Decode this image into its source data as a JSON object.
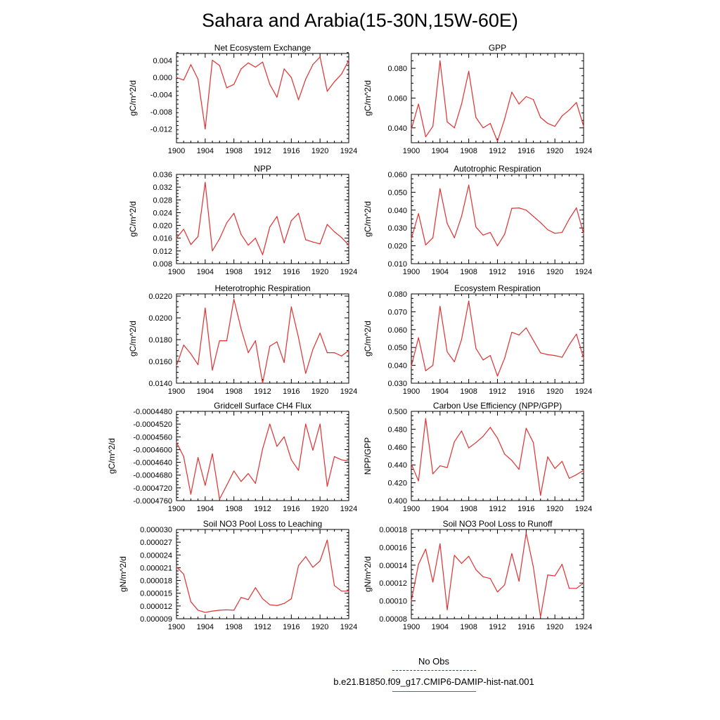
{
  "figure_title": "Sahara and Arabia(15-30N,15W-60E)",
  "legend": {
    "obs_label": "No Obs",
    "run_label": "b.e21.B1850.f09_g17.CMIP6-DAMIP-hist-nat.001",
    "obs_color": "#3333cc",
    "run_color": "#e03030"
  },
  "chart_data": [
    {
      "type": "line",
      "title": "Net Ecosystem Exchange",
      "ylabel": "gC/m^2/d",
      "x": [
        1900,
        1901,
        1902,
        1903,
        1904,
        1905,
        1906,
        1907,
        1908,
        1909,
        1910,
        1911,
        1912,
        1913,
        1914,
        1915,
        1916,
        1917,
        1918,
        1919,
        1920,
        1921,
        1922,
        1923,
        1924
      ],
      "xticks": [
        "1900",
        "1904",
        "1908",
        "1912",
        "1916",
        "1920",
        "1924"
      ],
      "xlim": [
        1900,
        1924
      ],
      "ylim": [
        -0.0152,
        0.0056
      ],
      "yticks": [
        "0.004",
        "0.000",
        "-0.004",
        "-0.008",
        "-0.012"
      ],
      "ytick_values": [
        0.004,
        0.0,
        -0.004,
        -0.008,
        -0.012
      ],
      "series": [
        {
          "color": "#e03030",
          "values": [
            0.0,
            -0.0006,
            0.003,
            -0.0004,
            -0.012,
            0.004,
            0.0028,
            -0.0024,
            -0.0016,
            0.002,
            0.0034,
            0.0024,
            0.0036,
            -0.0016,
            -0.0046,
            0.002,
            0.0,
            -0.0052,
            -0.0004,
            0.003,
            0.0048,
            -0.0032,
            -0.001,
            0.0008,
            0.004
          ]
        }
      ]
    },
    {
      "type": "line",
      "title": "GPP",
      "ylabel": "gC/m^2/d",
      "x": [
        1900,
        1901,
        1902,
        1903,
        1904,
        1905,
        1906,
        1907,
        1908,
        1909,
        1910,
        1911,
        1912,
        1913,
        1914,
        1915,
        1916,
        1917,
        1918,
        1919,
        1920,
        1921,
        1922,
        1923,
        1924
      ],
      "xticks": [
        "1900",
        "1904",
        "1908",
        "1912",
        "1916",
        "1920",
        "1924"
      ],
      "xlim": [
        1900,
        1924
      ],
      "ylim": [
        0.03,
        0.09
      ],
      "yticks": [
        "0.080",
        "0.060",
        "0.040"
      ],
      "ytick_values": [
        0.08,
        0.06,
        0.04
      ],
      "series": [
        {
          "color": "#e03030",
          "values": [
            0.039,
            0.056,
            0.034,
            0.041,
            0.085,
            0.044,
            0.04,
            0.056,
            0.078,
            0.047,
            0.04,
            0.043,
            0.031,
            0.046,
            0.064,
            0.056,
            0.061,
            0.059,
            0.047,
            0.043,
            0.041,
            0.048,
            0.052,
            0.057,
            0.041
          ]
        }
      ]
    },
    {
      "type": "line",
      "title": "NPP",
      "ylabel": "gC/m^2/d",
      "x": [
        1900,
        1901,
        1902,
        1903,
        1904,
        1905,
        1906,
        1907,
        1908,
        1909,
        1910,
        1911,
        1912,
        1913,
        1914,
        1915,
        1916,
        1917,
        1918,
        1919,
        1920,
        1921,
        1922,
        1923,
        1924
      ],
      "xticks": [
        "1900",
        "1904",
        "1908",
        "1912",
        "1916",
        "1920",
        "1924"
      ],
      "xlim": [
        1900,
        1924
      ],
      "ylim": [
        0.008,
        0.036
      ],
      "yticks": [
        "0.036",
        "0.032",
        "0.028",
        "0.024",
        "0.020",
        "0.016",
        "0.012",
        "0.008"
      ],
      "ytick_values": [
        0.036,
        0.032,
        0.028,
        0.024,
        0.02,
        0.016,
        0.012,
        0.008
      ],
      "series": [
        {
          "color": "#e03030",
          "values": [
            0.016,
            0.0188,
            0.014,
            0.0165,
            0.0335,
            0.012,
            0.0158,
            0.0208,
            0.0238,
            0.0172,
            0.0138,
            0.016,
            0.0108,
            0.0195,
            0.0228,
            0.0145,
            0.0215,
            0.0238,
            0.0155,
            0.0148,
            0.0142,
            0.0203,
            0.018,
            0.0162,
            0.0138
          ]
        }
      ]
    },
    {
      "type": "line",
      "title": "Autotrophic Respiration",
      "ylabel": "gC/m^2/d",
      "x": [
        1900,
        1901,
        1902,
        1903,
        1904,
        1905,
        1906,
        1907,
        1908,
        1909,
        1910,
        1911,
        1912,
        1913,
        1914,
        1915,
        1916,
        1917,
        1918,
        1919,
        1920,
        1921,
        1922,
        1923,
        1924
      ],
      "xticks": [
        "1900",
        "1904",
        "1908",
        "1912",
        "1916",
        "1920",
        "1924"
      ],
      "xlim": [
        1900,
        1924
      ],
      "ylim": [
        0.01,
        0.06
      ],
      "yticks": [
        "0.060",
        "0.050",
        "0.040",
        "0.030",
        "0.020",
        "0.010"
      ],
      "ytick_values": [
        0.06,
        0.05,
        0.04,
        0.03,
        0.02,
        0.01
      ],
      "series": [
        {
          "color": "#e03030",
          "values": [
            0.024,
            0.038,
            0.0205,
            0.0245,
            0.052,
            0.0325,
            0.0245,
            0.0365,
            0.054,
            0.0305,
            0.026,
            0.0275,
            0.02,
            0.0265,
            0.041,
            0.0412,
            0.04,
            0.0365,
            0.033,
            0.029,
            0.027,
            0.0275,
            0.035,
            0.0412,
            0.0268
          ]
        }
      ]
    },
    {
      "type": "line",
      "title": "Heterotrophic Respiration",
      "ylabel": "gC/m^2/d",
      "x": [
        1900,
        1901,
        1902,
        1903,
        1904,
        1905,
        1906,
        1907,
        1908,
        1909,
        1910,
        1911,
        1912,
        1913,
        1914,
        1915,
        1916,
        1917,
        1918,
        1919,
        1920,
        1921,
        1922,
        1923,
        1924
      ],
      "xticks": [
        "1900",
        "1904",
        "1908",
        "1912",
        "1916",
        "1920",
        "1924"
      ],
      "xlim": [
        1900,
        1924
      ],
      "ylim": [
        0.014,
        0.0222
      ],
      "yticks": [
        "0.0220",
        "0.0200",
        "0.0180",
        "0.0160",
        "0.0140"
      ],
      "ytick_values": [
        0.022,
        0.02,
        0.018,
        0.016,
        0.014
      ],
      "series": [
        {
          "color": "#e03030",
          "values": [
            0.0156,
            0.0175,
            0.0167,
            0.0157,
            0.0209,
            0.0152,
            0.0179,
            0.0179,
            0.0217,
            0.019,
            0.0168,
            0.0179,
            0.014,
            0.0174,
            0.0178,
            0.0159,
            0.021,
            0.0182,
            0.0149,
            0.0171,
            0.0186,
            0.0168,
            0.0168,
            0.0165,
            0.017
          ]
        }
      ]
    },
    {
      "type": "line",
      "title": "Ecosystem Respiration",
      "ylabel": "gC/m^2/d",
      "x": [
        1900,
        1901,
        1902,
        1903,
        1904,
        1905,
        1906,
        1907,
        1908,
        1909,
        1910,
        1911,
        1912,
        1913,
        1914,
        1915,
        1916,
        1917,
        1918,
        1919,
        1920,
        1921,
        1922,
        1923,
        1924
      ],
      "xticks": [
        "1900",
        "1904",
        "1908",
        "1912",
        "1916",
        "1920",
        "1924"
      ],
      "xlim": [
        1900,
        1924
      ],
      "ylim": [
        0.03,
        0.08
      ],
      "yticks": [
        "0.080",
        "0.070",
        "0.060",
        "0.050",
        "0.040",
        "0.030"
      ],
      "ytick_values": [
        0.08,
        0.07,
        0.06,
        0.05,
        0.04,
        0.03
      ],
      "series": [
        {
          "color": "#e03030",
          "values": [
            0.0395,
            0.0555,
            0.037,
            0.04,
            0.073,
            0.0475,
            0.042,
            0.0545,
            0.076,
            0.0495,
            0.043,
            0.0455,
            0.034,
            0.044,
            0.0585,
            0.057,
            0.061,
            0.054,
            0.047,
            0.046,
            0.0455,
            0.0445,
            0.0515,
            0.0575,
            0.044
          ]
        }
      ]
    },
    {
      "type": "line",
      "title": "Gridcell Surface CH4 Flux",
      "ylabel": "gC/m^2/d",
      "x": [
        1900,
        1901,
        1902,
        1903,
        1904,
        1905,
        1906,
        1907,
        1908,
        1909,
        1910,
        1911,
        1912,
        1913,
        1914,
        1915,
        1916,
        1917,
        1918,
        1919,
        1920,
        1921,
        1922,
        1923,
        1924
      ],
      "xticks": [
        "1900",
        "1904",
        "1908",
        "1912",
        "1916",
        "1920",
        "1924"
      ],
      "xlim": [
        1900,
        1924
      ],
      "ylim": [
        -0.000476,
        -0.000448
      ],
      "yticks": [
        "-0.0004480",
        "-0.0004520",
        "-0.0004560",
        "-0.0004600",
        "-0.0004640",
        "-0.0004680",
        "-0.0004720",
        "-0.0004760"
      ],
      "ytick_values": [
        -0.000448,
        -0.000452,
        -0.000456,
        -0.00046,
        -0.000464,
        -0.000468,
        -0.000472,
        -0.000476
      ],
      "series": [
        {
          "color": "#e03030",
          "values": [
            -0.0004577,
            -0.0004622,
            -0.000474,
            -0.0004625,
            -0.0004712,
            -0.0004613,
            -0.0004755,
            -0.0004712,
            -0.0004667,
            -0.00047,
            -0.0004675,
            -0.0004706,
            -0.0004598,
            -0.000452,
            -0.000459,
            -0.000456,
            -0.0004632,
            -0.0004665,
            -0.000452,
            -0.0004602,
            -0.000452,
            -0.0004715,
            -0.0004622,
            -0.0004632,
            -0.0004636
          ]
        }
      ]
    },
    {
      "type": "line",
      "title": "Carbon Use Efficiency (NPP/GPP)",
      "ylabel": "NPP/GPP",
      "x": [
        1900,
        1901,
        1902,
        1903,
        1904,
        1905,
        1906,
        1907,
        1908,
        1909,
        1910,
        1911,
        1912,
        1913,
        1914,
        1915,
        1916,
        1917,
        1918,
        1919,
        1920,
        1921,
        1922,
        1923,
        1924
      ],
      "xticks": [
        "1900",
        "1904",
        "1908",
        "1912",
        "1916",
        "1920",
        "1924"
      ],
      "xlim": [
        1900,
        1924
      ],
      "ylim": [
        0.4,
        0.5
      ],
      "yticks": [
        "0.500",
        "0.480",
        "0.460",
        "0.440",
        "0.420",
        "0.400"
      ],
      "ytick_values": [
        0.5,
        0.48,
        0.46,
        0.44,
        0.42,
        0.4
      ],
      "series": [
        {
          "color": "#e03030",
          "values": [
            0.441,
            0.422,
            0.492,
            0.43,
            0.439,
            0.437,
            0.466,
            0.478,
            0.459,
            0.465,
            0.472,
            0.482,
            0.47,
            0.452,
            0.445,
            0.435,
            0.481,
            0.465,
            0.406,
            0.449,
            0.436,
            0.444,
            0.425,
            0.429,
            0.434
          ]
        }
      ]
    },
    {
      "type": "line",
      "title": "Soil NO3 Pool Loss to Leaching",
      "ylabel": "gN/m^2/d",
      "x": [
        1900,
        1901,
        1902,
        1903,
        1904,
        1905,
        1906,
        1907,
        1908,
        1909,
        1910,
        1911,
        1912,
        1913,
        1914,
        1915,
        1916,
        1917,
        1918,
        1919,
        1920,
        1921,
        1922,
        1923,
        1924
      ],
      "xticks": [
        "1900",
        "1904",
        "1908",
        "1912",
        "1916",
        "1920",
        "1924"
      ],
      "xlim": [
        1900,
        1924
      ],
      "ylim": [
        9e-06,
        3e-05
      ],
      "yticks": [
        "0.000030",
        "0.000027",
        "0.000024",
        "0.000021",
        "0.000018",
        "0.000015",
        "0.000012",
        "0.000009"
      ],
      "ytick_values": [
        3e-05,
        2.7e-05,
        2.4e-05,
        2.1e-05,
        1.8e-05,
        1.5e-05,
        1.2e-05,
        9e-06
      ],
      "series": [
        {
          "color": "#e03030",
          "values": [
            2.12e-05,
            1.95e-05,
            1.3e-05,
            1.1e-05,
            1.05e-05,
            1.08e-05,
            1.1e-05,
            1.11e-05,
            1.1e-05,
            1.4e-05,
            1.35e-05,
            1.63e-05,
            1.37e-05,
            1.23e-05,
            1.21e-05,
            1.26e-05,
            1.37e-05,
            2.15e-05,
            2.36e-05,
            2.11e-05,
            2.26e-05,
            2.75e-05,
            1.68e-05,
            1.55e-05,
            1.55e-05
          ]
        }
      ]
    },
    {
      "type": "line",
      "title": "Soil NO3 Pool Loss to Runoff",
      "ylabel": "gN/m^2/d",
      "x": [
        1900,
        1901,
        1902,
        1903,
        1904,
        1905,
        1906,
        1907,
        1908,
        1909,
        1910,
        1911,
        1912,
        1913,
        1914,
        1915,
        1916,
        1917,
        1918,
        1919,
        1920,
        1921,
        1922,
        1923,
        1924
      ],
      "xticks": [
        "1900",
        "1904",
        "1908",
        "1912",
        "1916",
        "1920",
        "1924"
      ],
      "xlim": [
        1900,
        1924
      ],
      "ylim": [
        8e-05,
        0.00018
      ],
      "yticks": [
        "0.00018",
        "0.00016",
        "0.00014",
        "0.00012",
        "0.00010",
        "0.00008"
      ],
      "ytick_values": [
        0.00018,
        0.00016,
        0.00014,
        0.00012,
        0.0001,
        8e-05
      ],
      "series": [
        {
          "color": "#e03030",
          "values": [
            0.0001,
            0.000141,
            0.000158,
            0.000121,
            0.000164,
            9e-05,
            0.000151,
            0.000142,
            0.00015,
            0.000135,
            0.000127,
            0.000125,
            0.00011,
            0.000118,
            0.000153,
            0.000122,
            0.000176,
            0.000138,
            8.2e-05,
            0.000129,
            0.000128,
            0.000141,
            0.000114,
            0.000114,
            0.00012
          ]
        }
      ]
    }
  ]
}
